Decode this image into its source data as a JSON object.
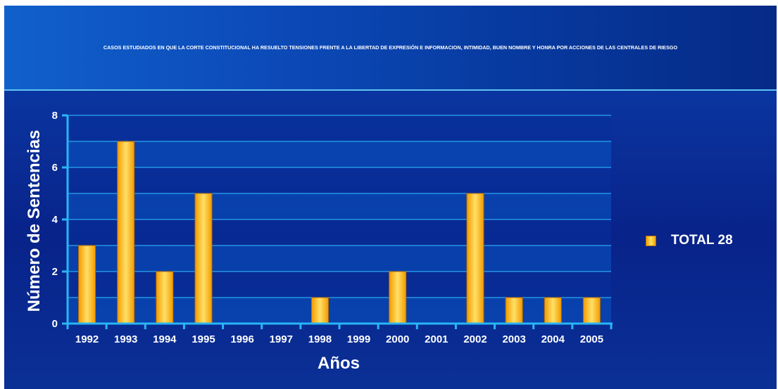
{
  "chart_data": {
    "type": "bar",
    "title": "CASOS ESTUDIADOS EN QUE LA CORTE CONSTITUCIONAL HA RESUELTO TENSIONES FRENTE A LA LIBERTAD DE EXPRESIÓN E INFORMACION, INTIMIDAD, BUEN NOMBRE Y HONRA POR ACCIONES DE LAS CENTRALES DE RIESGO",
    "xlabel": "Años",
    "ylabel": "Número de Sentencias",
    "categories": [
      "1992",
      "1993",
      "1994",
      "1995",
      "1996",
      "1997",
      "1998",
      "1999",
      "2000",
      "2001",
      "2002",
      "2003",
      "2004",
      "2005"
    ],
    "series": [
      {
        "name": "TOTAL 28",
        "values": [
          3,
          7,
          2,
          5,
          0,
          0,
          1,
          0,
          2,
          0,
          5,
          1,
          1,
          1
        ]
      }
    ],
    "ylim": [
      0,
      8
    ],
    "yticks": [
      0,
      2,
      4,
      6,
      8
    ],
    "grid": true,
    "legend_position": "right",
    "colors": {
      "bar_edge": "#f7a300",
      "bar_center": "#ffe066",
      "bar_outline": "#b86a00",
      "axis": "#29b6f6",
      "grid": "#29a8f0",
      "band_light": "#0a56c4",
      "band_dark": "#08309a"
    }
  }
}
